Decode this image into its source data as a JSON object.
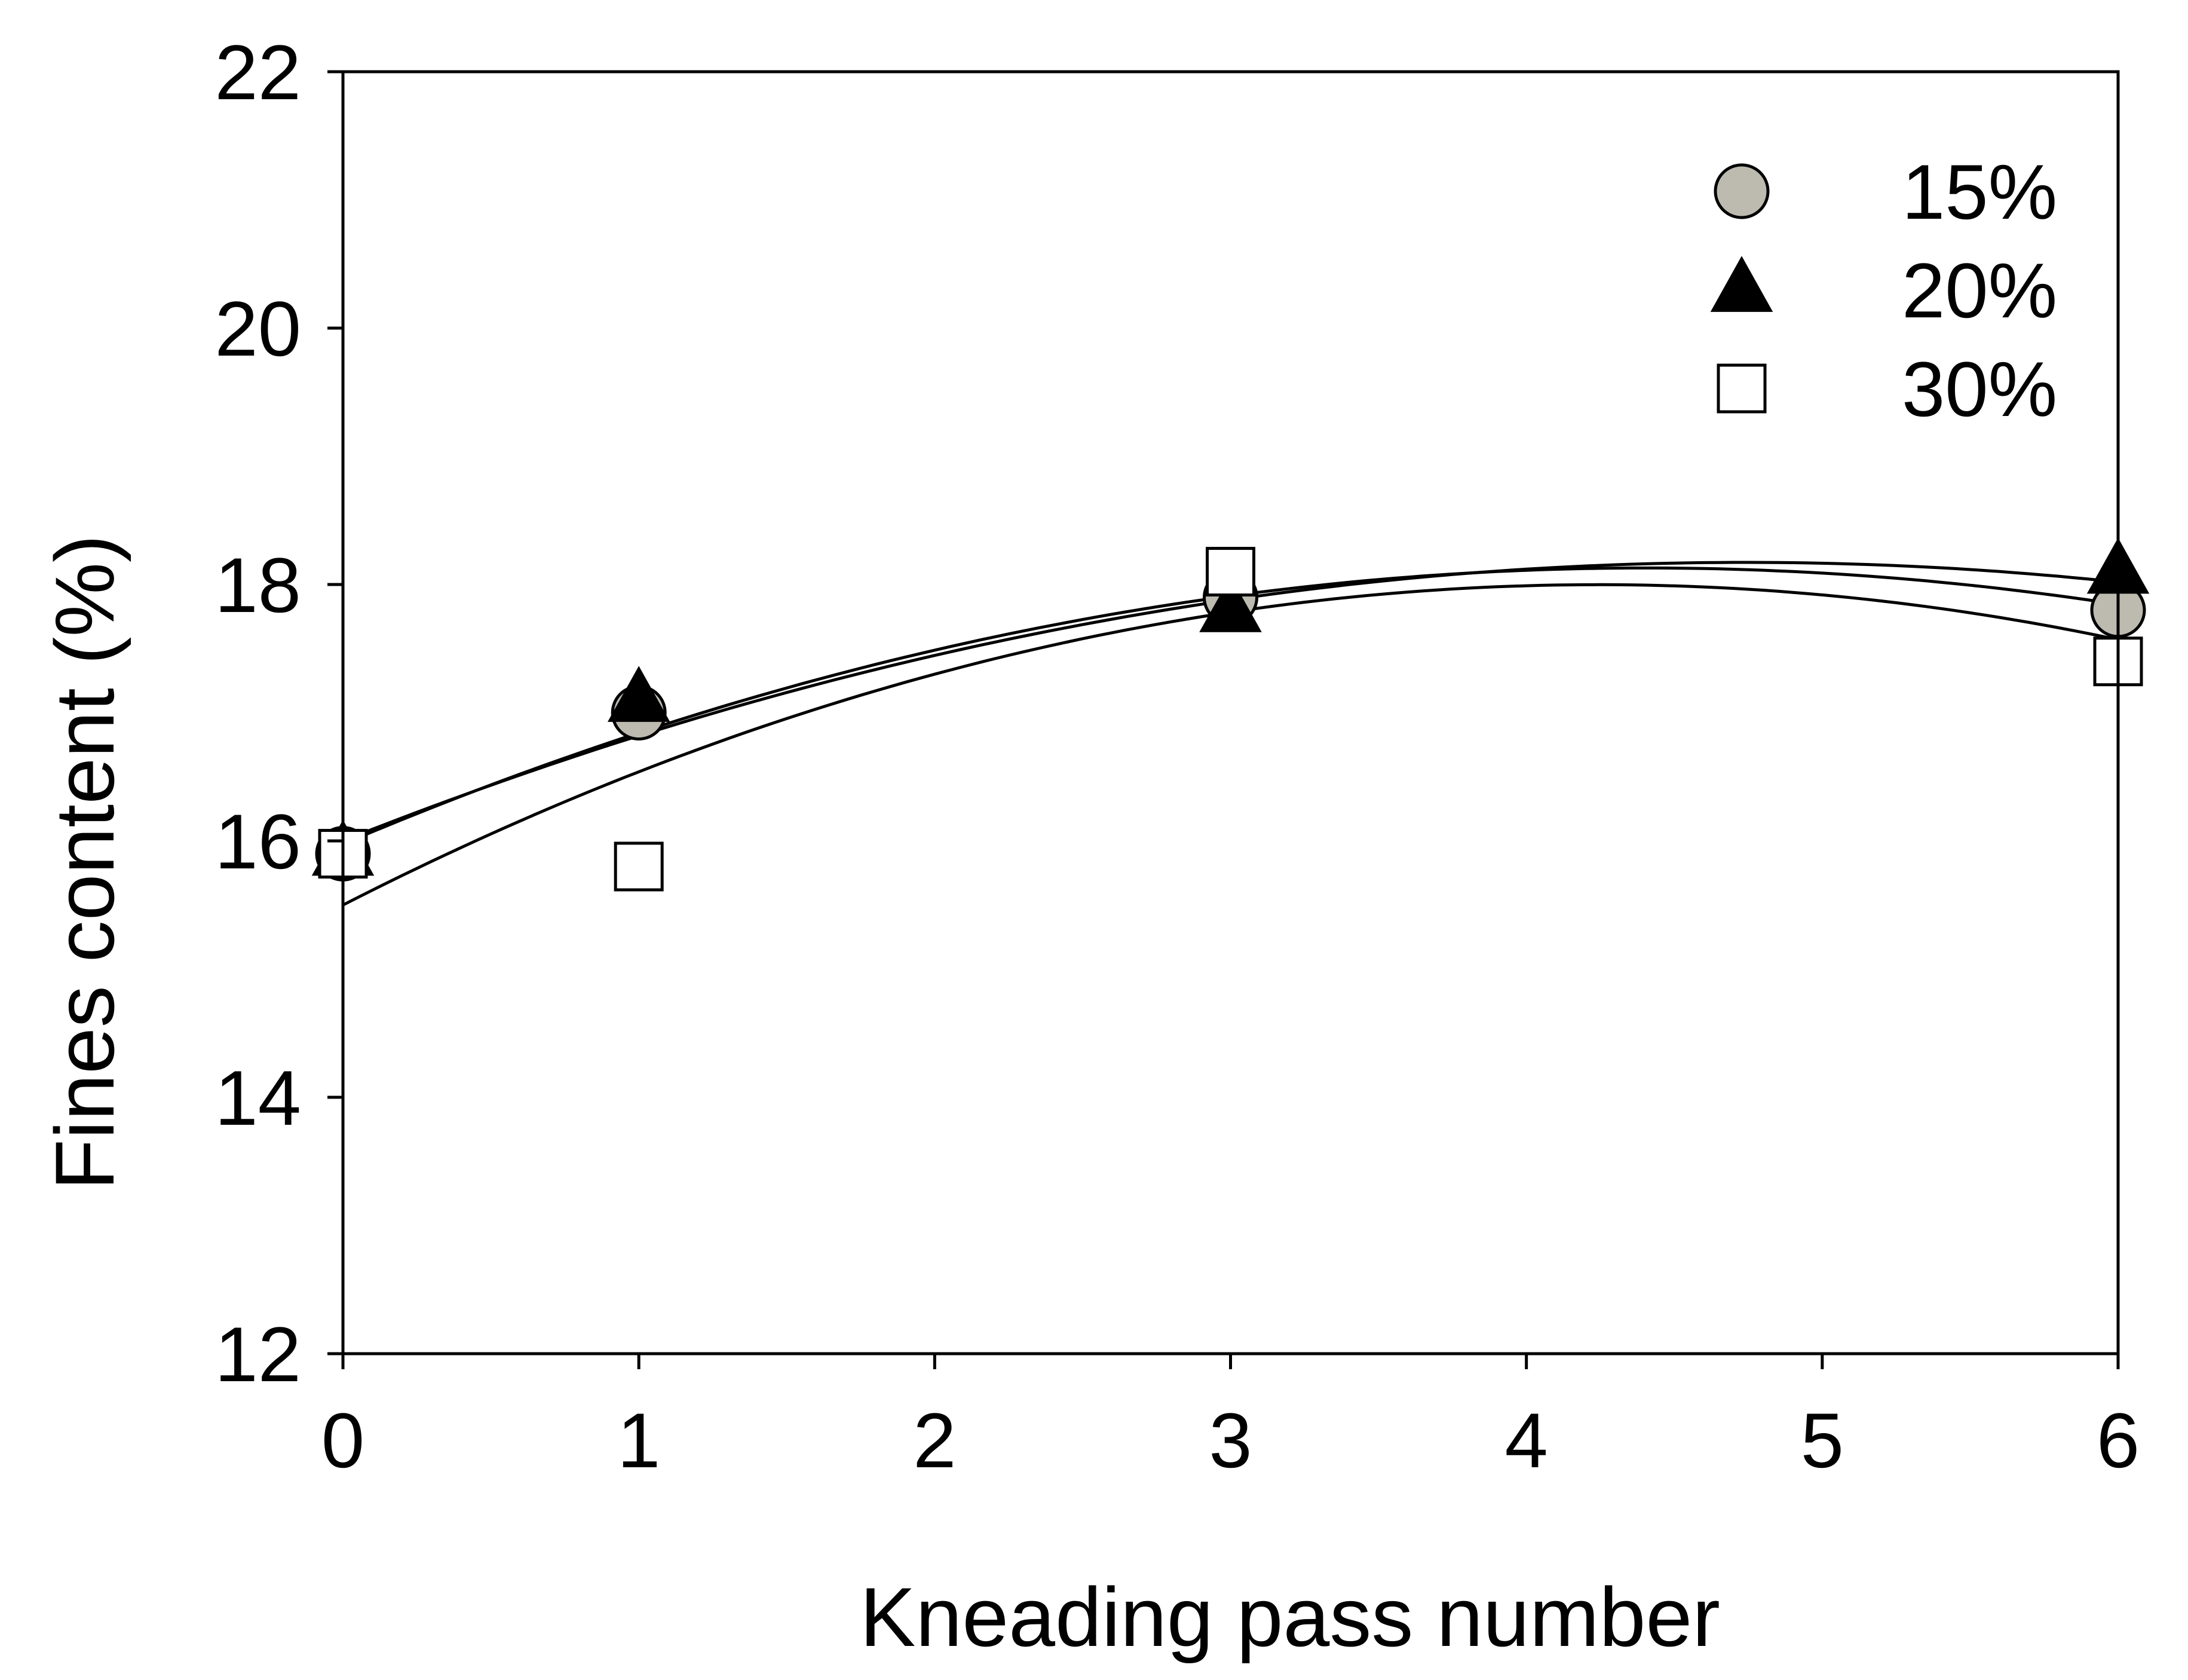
{
  "chart_data": {
    "type": "scatter",
    "title": "",
    "xlabel": "Kneading pass number",
    "ylabel": "Fines content (%)",
    "xlim": [
      0,
      6
    ],
    "ylim": [
      12,
      22
    ],
    "x_ticks": [
      0,
      1,
      2,
      3,
      4,
      5,
      6
    ],
    "y_ticks": [
      12,
      14,
      16,
      18,
      20,
      22
    ],
    "x_tick_labels": [
      "0",
      "1",
      "2",
      "3",
      "4",
      "5",
      "6"
    ],
    "y_tick_labels": [
      "12",
      "14",
      "16",
      "18",
      "20",
      "22"
    ],
    "grid": false,
    "legend_position": "top-right",
    "trendline": "quadratic",
    "series": [
      {
        "name": "15%",
        "marker": "circle",
        "marker_color": "#bdbab0",
        "x": [
          0,
          1,
          3,
          6
        ],
        "y": [
          15.9,
          17.0,
          17.9,
          17.8
        ],
        "fit": {
          "a": -0.1112,
          "b": 0.9788,
          "c": 15.975
        }
      },
      {
        "name": "20%",
        "marker": "triangle",
        "marker_color": "#000000",
        "x": [
          0,
          1,
          3,
          6
        ],
        "y": [
          15.9,
          17.1,
          17.8,
          18.1
        ],
        "fit": {
          "a": -0.0967,
          "b": 0.9167,
          "c": 16.0
        }
      },
      {
        "name": "30%",
        "marker": "square",
        "marker_color": "#ffffff",
        "x": [
          0,
          1,
          3,
          6
        ],
        "y": [
          15.9,
          15.8,
          18.1,
          17.4
        ],
        "fit": {
          "a": -0.1388,
          "b": 1.1778,
          "c": 15.5
        }
      }
    ]
  }
}
